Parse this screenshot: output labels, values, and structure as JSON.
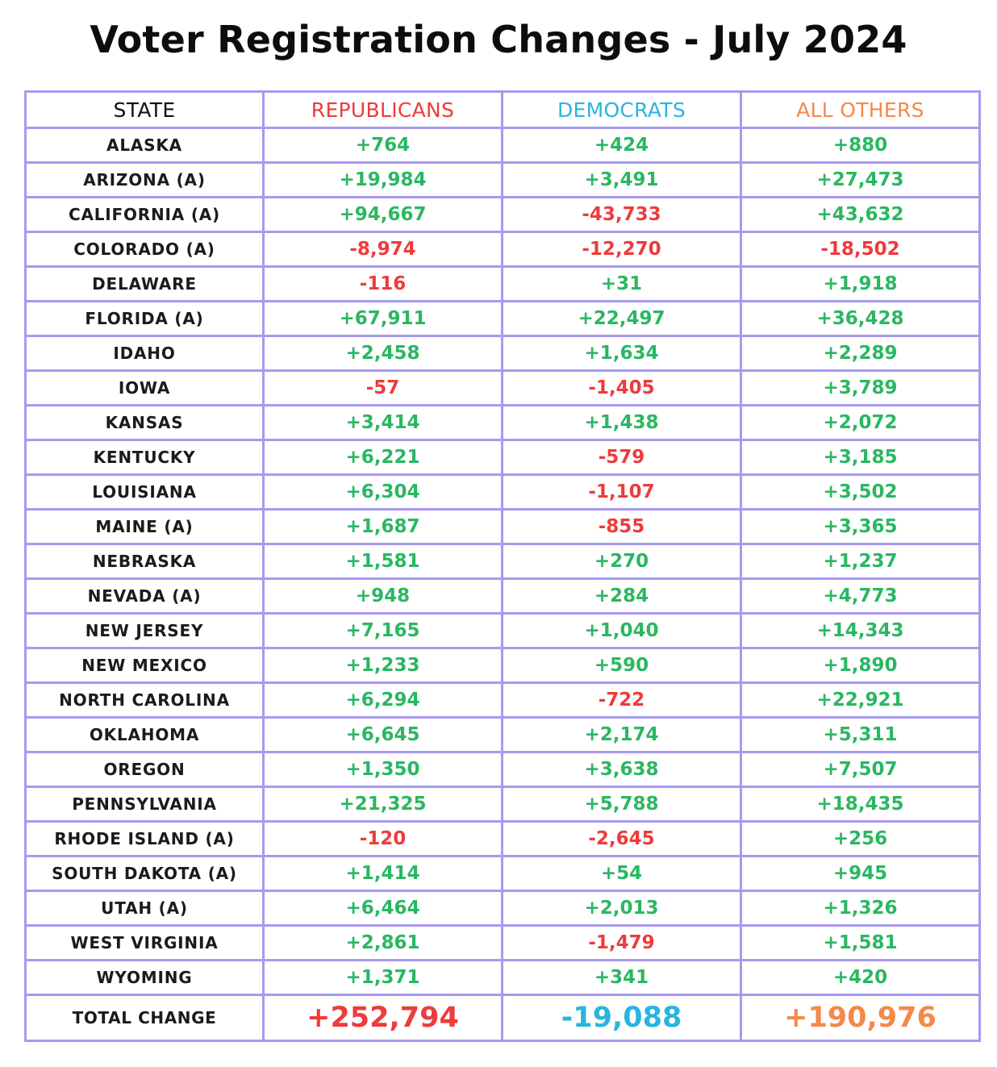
{
  "title": "Voter Registration Changes - July 2024",
  "colors": {
    "positive": "#2ab762",
    "negative": "#ee3b3b",
    "republicans": "#ee3b3b",
    "democrats": "#29b5de",
    "all_others": "#f5894a",
    "grid": "#a79af0",
    "text": "#1b1b1b"
  },
  "headers": {
    "state": "STATE",
    "republicans": "REPUBLICANS",
    "democrats": "DEMOCRATS",
    "all_others": "ALL OTHERS"
  },
  "rows": [
    {
      "state": "ALASKA",
      "rep": "+764",
      "dem": "+424",
      "oth": "+880"
    },
    {
      "state": "ARIZONA (A)",
      "rep": "+19,984",
      "dem": "+3,491",
      "oth": "+27,473"
    },
    {
      "state": "CALIFORNIA (A)",
      "rep": "+94,667",
      "dem": "-43,733",
      "oth": "+43,632"
    },
    {
      "state": "COLORADO (A)",
      "rep": "-8,974",
      "dem": "-12,270",
      "oth": "-18,502"
    },
    {
      "state": "DELAWARE",
      "rep": "-116",
      "dem": "+31",
      "oth": "+1,918"
    },
    {
      "state": "FLORIDA (A)",
      "rep": "+67,911",
      "dem": "+22,497",
      "oth": "+36,428"
    },
    {
      "state": "IDAHO",
      "rep": "+2,458",
      "dem": "+1,634",
      "oth": "+2,289"
    },
    {
      "state": "IOWA",
      "rep": "-57",
      "dem": "-1,405",
      "oth": "+3,789"
    },
    {
      "state": "KANSAS",
      "rep": "+3,414",
      "dem": "+1,438",
      "oth": "+2,072"
    },
    {
      "state": "KENTUCKY",
      "rep": "+6,221",
      "dem": "-579",
      "oth": "+3,185"
    },
    {
      "state": "LOUISIANA",
      "rep": "+6,304",
      "dem": "-1,107",
      "oth": "+3,502"
    },
    {
      "state": "MAINE (A)",
      "rep": "+1,687",
      "dem": "-855",
      "oth": "+3,365"
    },
    {
      "state": "NEBRASKA",
      "rep": "+1,581",
      "dem": "+270",
      "oth": "+1,237"
    },
    {
      "state": "NEVADA (A)",
      "rep": "+948",
      "dem": "+284",
      "oth": "+4,773"
    },
    {
      "state": "NEW JERSEY",
      "rep": "+7,165",
      "dem": "+1,040",
      "oth": "+14,343"
    },
    {
      "state": "NEW MEXICO",
      "rep": "+1,233",
      "dem": "+590",
      "oth": "+1,890"
    },
    {
      "state": "NORTH CAROLINA",
      "rep": "+6,294",
      "dem": "-722",
      "oth": "+22,921"
    },
    {
      "state": "OKLAHOMA",
      "rep": "+6,645",
      "dem": "+2,174",
      "oth": "+5,311"
    },
    {
      "state": "OREGON",
      "rep": "+1,350",
      "dem": "+3,638",
      "oth": "+7,507"
    },
    {
      "state": "PENNSYLVANIA",
      "rep": "+21,325",
      "dem": "+5,788",
      "oth": "+18,435"
    },
    {
      "state": "RHODE ISLAND (A)",
      "rep": "-120",
      "dem": "-2,645",
      "oth": "+256"
    },
    {
      "state": "SOUTH DAKOTA (A)",
      "rep": "+1,414",
      "dem": "+54",
      "oth": "+945"
    },
    {
      "state": "UTAH (A)",
      "rep": "+6,464",
      "dem": "+2,013",
      "oth": "+1,326"
    },
    {
      "state": "WEST VIRGINIA",
      "rep": "+2,861",
      "dem": "-1,479",
      "oth": "+1,581"
    },
    {
      "state": "WYOMING",
      "rep": "+1,371",
      "dem": "+341",
      "oth": "+420"
    }
  ],
  "total": {
    "label": "TOTAL CHANGE",
    "rep": "+252,794",
    "dem": "-19,088",
    "oth": "+190,976"
  }
}
